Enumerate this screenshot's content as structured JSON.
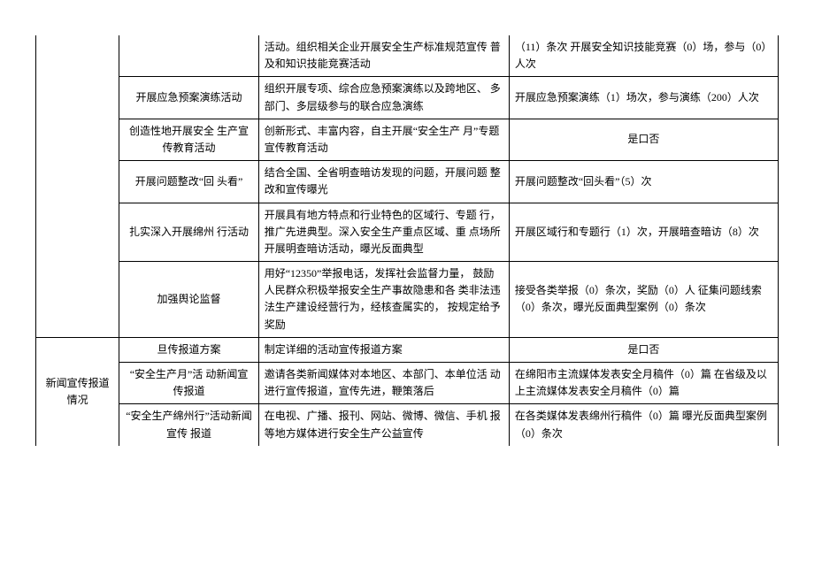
{
  "table": {
    "border_color": "#000000",
    "background_color": "#ffffff",
    "text_color": "#000000",
    "font_size": 12,
    "columns": {
      "col1_width": 90,
      "col2_width": 150,
      "col3_width": 270,
      "col4_width": 290
    },
    "rows": [
      {
        "c1": "",
        "c2": "",
        "c3": "活动。组织相关企业开展安全生产标准规范宣传 普及和知识技能竞赛活动",
        "c4": "（11）条次\n开展安全知识技能竞赛（0）场，参与（0）人次"
      },
      {
        "c2": "开展应急预案演练活动",
        "c3": "组织开展专项、综合应急预案演练以及跨地区、 多部门、多层级参与的联合应急演练",
        "c4": "开展应急预案演练（1）场次，参与演练（200）人次"
      },
      {
        "c2": "创造性地开展安全 生产宣传教育活动",
        "c3": "创新形式、丰富内容，自主开展“安全生产 月”专题宣传教育活动",
        "c4": "是口否"
      },
      {
        "c2": "开展问题整改“回 头看”",
        "c3": "结合全国、全省明查暗访发现的问题，开展问题 整改和宣传曝光",
        "c4": "开展问题整改“回头看”（5）次"
      },
      {
        "c2": "扎实深入开展绵州 行活动",
        "c3": "开展具有地方特点和行业特色的区域行、专题 行，推广先进典型。深入安全生产重点区域、重 点场所开展明查暗访活动，曝光反面典型",
        "c4": "开展区域行和专题行（1）次，开展暗查暗访（8）次"
      },
      {
        "c2": "加强舆论监督",
        "c3": "用好“12350”举报电话，发挥社会监督力量， 鼓励人民群众积极举报安全生产事故隐患和各 类非法违法生产建设经营行为，经核查属实的， 按规定给予奖励",
        "c4": "接受各类举报（0）条次，奖励（0）人\n征集问题线索（0）条次，曝光反面典型案例（0）条次"
      },
      {
        "c1": "新闻宣传报道情况",
        "c2": "旦传报道方案",
        "c3": "制定详细的活动宣传报道方案",
        "c4": "是口否"
      },
      {
        "c2": "“安全生产月”活 动新闻宣传报道",
        "c3": "邀请各类新闻媒体对本地区、本部门、本单位活 动进行宣传报道，宣传先进，鞭策落后",
        "c4": "在绵阳市主流媒体发表安全月稿件（0）篇\n在省级及以上主流媒体发表安全月稿件（0）篇"
      },
      {
        "c2": "“安全生产绵州行”活动新闻宣传 报道",
        "c3": "在电视、广播、报刊、网站、微博、微信、手机 报等地方媒体进行安全生产公益宣传",
        "c4": "在各类媒体发表绵州行稿件（0）篇\n曝光反面典型案例（0）条次"
      }
    ]
  }
}
